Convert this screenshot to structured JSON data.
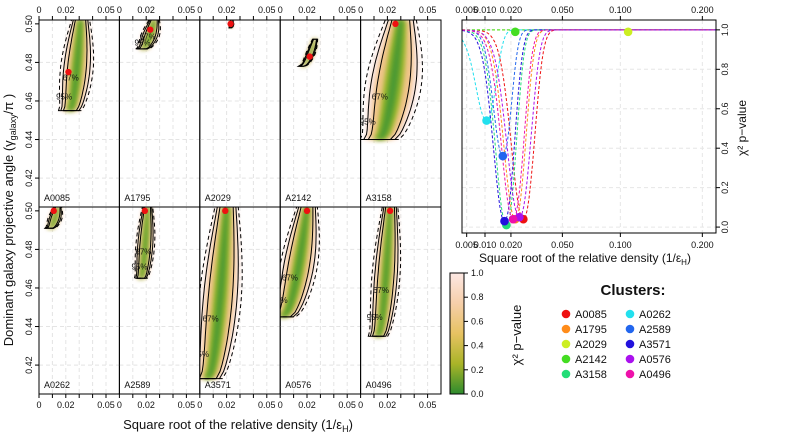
{
  "figure": {
    "left_xlabel": "Square root of the relative density (1/ε",
    "left_xlabel_sub": "H",
    "left_ylabel_main": "Dominant galaxy projective angle (",
    "left_ylabel_gamma": "γ",
    "left_ylabel_sub": "galaxy",
    "left_ylabel_end": "/π )",
    "right_xlabel": "Square root of the relative density (1/ε",
    "right_xlabel_sub": "H",
    "right_ylabel": "χ² p−value",
    "colorbar_label": "χ² p−value",
    "legend_title": "Clusters:"
  },
  "chart_data": [
    {
      "type": "heatmap",
      "layout": "grid 2x5 panels",
      "x_ticks": [
        "0",
        "0.02",
        "0.05"
      ],
      "x_minor_ticks": [
        "0.01",
        "0.03",
        "0.04"
      ],
      "xlim": [
        0,
        0.06
      ],
      "y_ticks": [
        "0.42",
        "0.44",
        "0.46",
        "0.48",
        "0.50"
      ],
      "ylim": [
        0.405,
        0.502
      ],
      "contour_labels": [
        "67%",
        "95%"
      ],
      "panels": [
        {
          "name": "A0085",
          "best": [
            0.022,
            0.475
          ],
          "ridge_x": [
            0.023,
            0.031
          ],
          "ridge_y": [
            0.455,
            0.502
          ],
          "width": 0.007,
          "extent": 0.85
        },
        {
          "name": "A1795",
          "best": [
            0.023,
            0.497
          ],
          "ridge_x": [
            0.017,
            0.026
          ],
          "ridge_y": [
            0.487,
            0.502
          ],
          "width": 0.004,
          "extent": 0.8
        },
        {
          "name": "A2029",
          "best": [
            0.023,
            0.5
          ],
          "ridge_x": [
            0.023,
            0.024
          ],
          "ridge_y": [
            0.498,
            0.502
          ],
          "width": 0.001,
          "extent": 0.4
        },
        {
          "name": "A2142",
          "best": [
            0.022,
            0.483
          ],
          "ridge_x": [
            0.016,
            0.026
          ],
          "ridge_y": [
            0.478,
            0.492
          ],
          "width": 0.002,
          "extent": 0.6
        },
        {
          "name": "A3158",
          "best": [
            0.026,
            0.5
          ],
          "ridge_x": [
            0.014,
            0.03
          ],
          "ridge_y": [
            0.44,
            0.502
          ],
          "width": 0.012,
          "extent": 1.0
        },
        {
          "name": "A0262",
          "best": [
            0.011,
            0.5
          ],
          "ridge_x": [
            0.008,
            0.014
          ],
          "ridge_y": [
            0.491,
            0.502
          ],
          "width": 0.003,
          "extent": 0.7
        },
        {
          "name": "A2589",
          "best": [
            0.019,
            0.5
          ],
          "ridge_x": [
            0.016,
            0.021
          ],
          "ridge_y": [
            0.465,
            0.502
          ],
          "width": 0.004,
          "extent": 0.8
        },
        {
          "name": "A3571",
          "best": [
            0.019,
            0.5
          ],
          "ridge_x": [
            0.006,
            0.02
          ],
          "ridge_y": [
            0.413,
            0.502
          ],
          "width": 0.009,
          "extent": 1.0
        },
        {
          "name": "A0576",
          "best": [
            0.02,
            0.5
          ],
          "ridge_x": [
            0.002,
            0.02
          ],
          "ridge_y": [
            0.445,
            0.502
          ],
          "width": 0.008,
          "extent": 1.0
        },
        {
          "name": "A0496",
          "best": [
            0.022,
            0.5
          ],
          "ridge_x": [
            0.013,
            0.022
          ],
          "ridge_y": [
            0.435,
            0.502
          ],
          "width": 0.006,
          "extent": 0.9
        }
      ]
    },
    {
      "type": "line",
      "x_scale": "sqrt",
      "x_ticks": [
        "0.005",
        "0.010",
        "0.020",
        "0.050",
        "0.100",
        "0.200"
      ],
      "xlim": [
        0.004,
        0.22
      ],
      "y_ticks": [
        "0.0",
        "0.2",
        "0.4",
        "0.6",
        "0.8",
        "1.0"
      ],
      "ylim": [
        -0.03,
        1.05
      ],
      "series": [
        {
          "name": "A0085",
          "min_x": 0.026,
          "min_y": 0.04,
          "half_width": 0.008
        },
        {
          "name": "A1795",
          "min_x": 0.022,
          "min_y": 0.04,
          "half_width": 0.007
        },
        {
          "name": "A2029",
          "min_x": 0.108,
          "min_y": 0.99,
          "half_width": 0.0
        },
        {
          "name": "A2142",
          "min_x": 0.022,
          "min_y": 0.99,
          "half_width": 0.0
        },
        {
          "name": "A3158",
          "min_x": 0.018,
          "min_y": 0.01,
          "half_width": 0.006
        },
        {
          "name": "A0262",
          "min_x": 0.0105,
          "min_y": 0.54,
          "half_width": 0.0045
        },
        {
          "name": "A2589",
          "min_x": 0.0165,
          "min_y": 0.36,
          "half_width": 0.005
        },
        {
          "name": "A3571",
          "min_x": 0.0172,
          "min_y": 0.03,
          "half_width": 0.006
        },
        {
          "name": "A0576",
          "min_x": 0.024,
          "min_y": 0.05,
          "half_width": 0.008
        },
        {
          "name": "A0496",
          "min_x": 0.021,
          "min_y": 0.04,
          "half_width": 0.007
        }
      ]
    },
    {
      "type": "heatmap",
      "role": "colorbar",
      "ticks": [
        "0.0",
        "0.2",
        "0.4",
        "0.6",
        "0.8",
        "1.0"
      ],
      "range": [
        0,
        1
      ]
    }
  ],
  "legend": {
    "columns": [
      [
        {
          "name": "A0085",
          "color": "#ee1111"
        },
        {
          "name": "A1795",
          "color": "#ff8c1a"
        },
        {
          "name": "A2029",
          "color": "#ccee22"
        },
        {
          "name": "A2142",
          "color": "#44dd22"
        },
        {
          "name": "A3158",
          "color": "#22dd77"
        }
      ],
      [
        {
          "name": "A0262",
          "color": "#22e0ee"
        },
        {
          "name": "A2589",
          "color": "#2266ee"
        },
        {
          "name": "A3571",
          "color": "#2211dd"
        },
        {
          "name": "A0576",
          "color": "#aa11ee"
        },
        {
          "name": "A0496",
          "color": "#ee11aa"
        }
      ]
    ]
  },
  "colors": {
    "best_fit_marker": "#ee1111",
    "scale_low": "#2e8b2e",
    "scale_mid": "#f2c27a",
    "scale_high": "#fde8e4"
  }
}
